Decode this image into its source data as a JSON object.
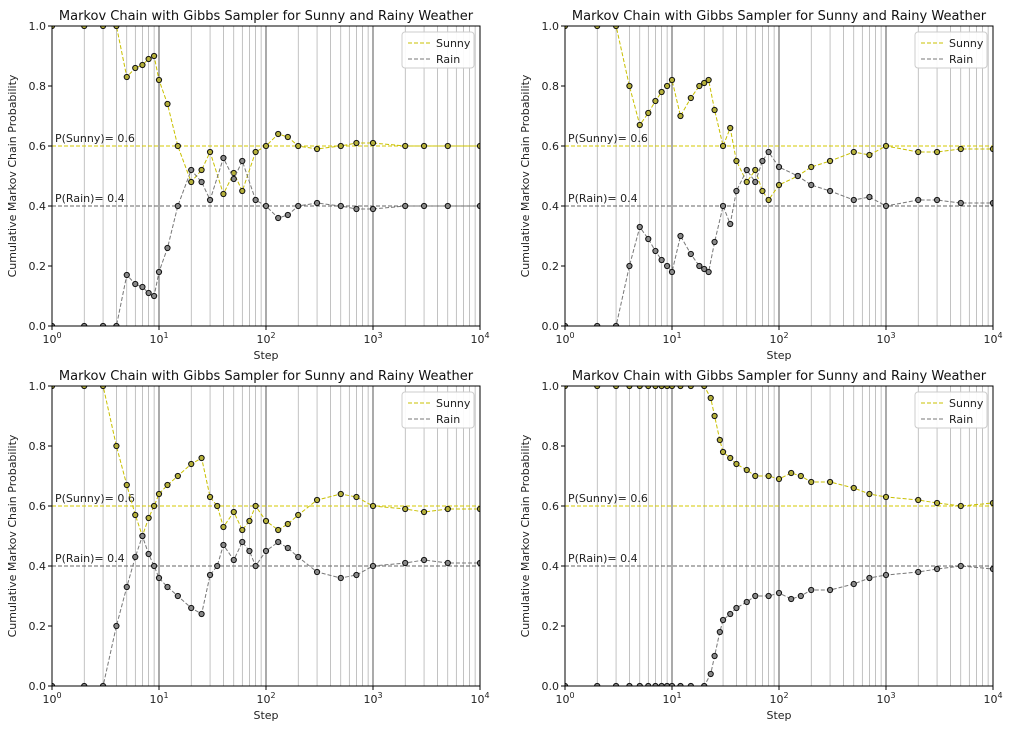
{
  "chart_data": [
    {
      "type": "line",
      "title": "Markov Chain with Gibbs Sampler for Sunny and Rainy Weather",
      "xlabel": "Step",
      "ylabel": "Cumulative Markov Chain Probability",
      "xscale": "log",
      "xlim": [
        1,
        10000
      ],
      "ylim": [
        0,
        1
      ],
      "x_ticks": [
        {
          "base": "10",
          "exp": "0"
        },
        {
          "base": "10",
          "exp": "1"
        },
        {
          "base": "10",
          "exp": "2"
        },
        {
          "base": "10",
          "exp": "3"
        },
        {
          "base": "10",
          "exp": "4"
        }
      ],
      "y_ticks": [
        "0.0",
        "0.2",
        "0.4",
        "0.6",
        "0.8",
        "1.0"
      ],
      "grid": "vertical",
      "legend_position": "top-right",
      "reference_lines": [
        {
          "label": "P(Sunny)= 0.6",
          "y": 0.6,
          "color": "#d4c800"
        },
        {
          "label": "P(Rain)= 0.4",
          "y": 0.4,
          "color": "#666666"
        }
      ],
      "series": [
        {
          "name": "Sunny",
          "color": "#c9c000",
          "marker_fill": "#b5b03a",
          "x": [
            1,
            2,
            3,
            4,
            5,
            6,
            7,
            8,
            9,
            10,
            12,
            15,
            20,
            25,
            30,
            40,
            50,
            60,
            80,
            100,
            130,
            160,
            200,
            300,
            500,
            700,
            1000,
            2000,
            3000,
            5000,
            10000
          ],
          "y": [
            1.0,
            1.0,
            1.0,
            1.0,
            0.83,
            0.86,
            0.87,
            0.89,
            0.9,
            0.82,
            0.74,
            0.6,
            0.48,
            0.52,
            0.58,
            0.44,
            0.51,
            0.45,
            0.58,
            0.6,
            0.64,
            0.63,
            0.6,
            0.59,
            0.6,
            0.61,
            0.61,
            0.6,
            0.6,
            0.6,
            0.6
          ]
        },
        {
          "name": "Rain",
          "color": "#777777",
          "marker_fill": "#888888",
          "x": [
            1,
            2,
            3,
            4,
            5,
            6,
            7,
            8,
            9,
            10,
            12,
            15,
            20,
            25,
            30,
            40,
            50,
            60,
            80,
            100,
            130,
            160,
            200,
            300,
            500,
            700,
            1000,
            2000,
            3000,
            5000,
            10000
          ],
          "y": [
            0.0,
            0.0,
            0.0,
            0.0,
            0.17,
            0.14,
            0.13,
            0.11,
            0.1,
            0.18,
            0.26,
            0.4,
            0.52,
            0.48,
            0.42,
            0.56,
            0.49,
            0.55,
            0.42,
            0.4,
            0.36,
            0.37,
            0.4,
            0.41,
            0.4,
            0.39,
            0.39,
            0.4,
            0.4,
            0.4,
            0.4
          ]
        }
      ]
    },
    {
      "type": "line",
      "title": "Markov Chain with Gibbs Sampler for Sunny and Rainy Weather",
      "xlabel": "Step",
      "ylabel": "Cumulative Markov Chain Probability",
      "xscale": "log",
      "xlim": [
        1,
        10000
      ],
      "ylim": [
        0,
        1
      ],
      "x_ticks": [
        {
          "base": "10",
          "exp": "0"
        },
        {
          "base": "10",
          "exp": "1"
        },
        {
          "base": "10",
          "exp": "2"
        },
        {
          "base": "10",
          "exp": "3"
        },
        {
          "base": "10",
          "exp": "4"
        }
      ],
      "y_ticks": [
        "0.0",
        "0.2",
        "0.4",
        "0.6",
        "0.8",
        "1.0"
      ],
      "grid": "vertical",
      "legend_position": "top-right",
      "reference_lines": [
        {
          "label": "P(Sunny)= 0.6",
          "y": 0.6,
          "color": "#d4c800"
        },
        {
          "label": "P(Rain)= 0.4",
          "y": 0.4,
          "color": "#666666"
        }
      ],
      "series": [
        {
          "name": "Sunny",
          "color": "#c9c000",
          "marker_fill": "#b5b03a",
          "x": [
            1,
            2,
            3,
            4,
            5,
            6,
            7,
            8,
            9,
            10,
            12,
            15,
            18,
            20,
            22,
            25,
            30,
            35,
            40,
            50,
            60,
            70,
            80,
            100,
            150,
            200,
            300,
            500,
            700,
            1000,
            2000,
            3000,
            5000,
            10000
          ],
          "y": [
            1.0,
            1.0,
            1.0,
            0.8,
            0.67,
            0.71,
            0.75,
            0.78,
            0.8,
            0.82,
            0.7,
            0.76,
            0.8,
            0.81,
            0.82,
            0.72,
            0.6,
            0.66,
            0.55,
            0.48,
            0.52,
            0.45,
            0.42,
            0.47,
            0.5,
            0.53,
            0.55,
            0.58,
            0.57,
            0.6,
            0.58,
            0.58,
            0.59,
            0.59
          ]
        },
        {
          "name": "Rain",
          "color": "#777777",
          "marker_fill": "#888888",
          "x": [
            1,
            2,
            3,
            4,
            5,
            6,
            7,
            8,
            9,
            10,
            12,
            15,
            18,
            20,
            22,
            25,
            30,
            35,
            40,
            50,
            60,
            70,
            80,
            100,
            150,
            200,
            300,
            500,
            700,
            1000,
            2000,
            3000,
            5000,
            10000
          ],
          "y": [
            0.0,
            0.0,
            0.0,
            0.2,
            0.33,
            0.29,
            0.25,
            0.22,
            0.2,
            0.18,
            0.3,
            0.24,
            0.2,
            0.19,
            0.18,
            0.28,
            0.4,
            0.34,
            0.45,
            0.52,
            0.48,
            0.55,
            0.58,
            0.53,
            0.5,
            0.47,
            0.45,
            0.42,
            0.43,
            0.4,
            0.42,
            0.42,
            0.41,
            0.41
          ]
        }
      ]
    },
    {
      "type": "line",
      "title": "Markov Chain with Gibbs Sampler for Sunny and Rainy Weather",
      "xlabel": "Step",
      "ylabel": "Cumulative Markov Chain Probability",
      "xscale": "log",
      "xlim": [
        1,
        10000
      ],
      "ylim": [
        0,
        1
      ],
      "x_ticks": [
        {
          "base": "10",
          "exp": "0"
        },
        {
          "base": "10",
          "exp": "1"
        },
        {
          "base": "10",
          "exp": "2"
        },
        {
          "base": "10",
          "exp": "3"
        },
        {
          "base": "10",
          "exp": "4"
        }
      ],
      "y_ticks": [
        "0.0",
        "0.2",
        "0.4",
        "0.6",
        "0.8",
        "1.0"
      ],
      "grid": "vertical",
      "legend_position": "top-right",
      "reference_lines": [
        {
          "label": "P(Sunny)= 0.6",
          "y": 0.6,
          "color": "#d4c800"
        },
        {
          "label": "P(Rain)= 0.4",
          "y": 0.4,
          "color": "#666666"
        }
      ],
      "series": [
        {
          "name": "Sunny",
          "color": "#c9c000",
          "marker_fill": "#b5b03a",
          "x": [
            1,
            2,
            3,
            4,
            5,
            6,
            7,
            8,
            9,
            10,
            12,
            15,
            20,
            25,
            30,
            35,
            40,
            50,
            60,
            70,
            80,
            100,
            130,
            160,
            200,
            300,
            500,
            700,
            1000,
            2000,
            3000,
            5000,
            10000
          ],
          "y": [
            1.0,
            1.0,
            1.0,
            0.8,
            0.67,
            0.57,
            0.5,
            0.56,
            0.6,
            0.64,
            0.67,
            0.7,
            0.74,
            0.76,
            0.63,
            0.6,
            0.53,
            0.58,
            0.52,
            0.55,
            0.6,
            0.55,
            0.52,
            0.54,
            0.57,
            0.62,
            0.64,
            0.63,
            0.6,
            0.59,
            0.58,
            0.59,
            0.59
          ]
        },
        {
          "name": "Rain",
          "color": "#777777",
          "marker_fill": "#888888",
          "x": [
            1,
            2,
            3,
            4,
            5,
            6,
            7,
            8,
            9,
            10,
            12,
            15,
            20,
            25,
            30,
            35,
            40,
            50,
            60,
            70,
            80,
            100,
            130,
            160,
            200,
            300,
            500,
            700,
            1000,
            2000,
            3000,
            5000,
            10000
          ],
          "y": [
            0.0,
            0.0,
            0.0,
            0.2,
            0.33,
            0.43,
            0.5,
            0.44,
            0.4,
            0.36,
            0.33,
            0.3,
            0.26,
            0.24,
            0.37,
            0.4,
            0.47,
            0.42,
            0.48,
            0.45,
            0.4,
            0.45,
            0.48,
            0.46,
            0.43,
            0.38,
            0.36,
            0.37,
            0.4,
            0.41,
            0.42,
            0.41,
            0.41
          ]
        }
      ]
    },
    {
      "type": "line",
      "title": "Markov Chain with Gibbs Sampler for Sunny and Rainy Weather",
      "xlabel": "Step",
      "ylabel": "Cumulative Markov Chain Probability",
      "xscale": "log",
      "xlim": [
        1,
        10000
      ],
      "ylim": [
        0,
        1
      ],
      "x_ticks": [
        {
          "base": "10",
          "exp": "0"
        },
        {
          "base": "10",
          "exp": "1"
        },
        {
          "base": "10",
          "exp": "2"
        },
        {
          "base": "10",
          "exp": "3"
        },
        {
          "base": "10",
          "exp": "4"
        }
      ],
      "y_ticks": [
        "0.0",
        "0.2",
        "0.4",
        "0.6",
        "0.8",
        "1.0"
      ],
      "grid": "vertical",
      "legend_position": "top-right",
      "reference_lines": [
        {
          "label": "P(Sunny)= 0.6",
          "y": 0.6,
          "color": "#d4c800"
        },
        {
          "label": "P(Rain)= 0.4",
          "y": 0.4,
          "color": "#666666"
        }
      ],
      "series": [
        {
          "name": "Sunny",
          "color": "#c9c000",
          "marker_fill": "#b5b03a",
          "x": [
            1,
            2,
            3,
            4,
            5,
            6,
            7,
            8,
            9,
            10,
            12,
            15,
            20,
            23,
            25,
            28,
            30,
            35,
            40,
            50,
            60,
            80,
            100,
            130,
            160,
            200,
            300,
            500,
            700,
            1000,
            2000,
            3000,
            5000,
            10000
          ],
          "y": [
            1.0,
            1.0,
            1.0,
            1.0,
            1.0,
            1.0,
            1.0,
            1.0,
            1.0,
            1.0,
            1.0,
            1.0,
            1.0,
            0.96,
            0.9,
            0.82,
            0.78,
            0.76,
            0.74,
            0.72,
            0.7,
            0.7,
            0.69,
            0.71,
            0.7,
            0.68,
            0.68,
            0.66,
            0.64,
            0.63,
            0.62,
            0.61,
            0.6,
            0.61
          ]
        },
        {
          "name": "Rain",
          "color": "#777777",
          "marker_fill": "#888888",
          "x": [
            1,
            2,
            3,
            4,
            5,
            6,
            7,
            8,
            9,
            10,
            12,
            15,
            20,
            23,
            25,
            28,
            30,
            35,
            40,
            50,
            60,
            80,
            100,
            130,
            160,
            200,
            300,
            500,
            700,
            1000,
            2000,
            3000,
            5000,
            10000
          ],
          "y": [
            0.0,
            0.0,
            0.0,
            0.0,
            0.0,
            0.0,
            0.0,
            0.0,
            0.0,
            0.0,
            0.0,
            0.0,
            0.0,
            0.04,
            0.1,
            0.18,
            0.22,
            0.24,
            0.26,
            0.28,
            0.3,
            0.3,
            0.31,
            0.29,
            0.3,
            0.32,
            0.32,
            0.34,
            0.36,
            0.37,
            0.38,
            0.39,
            0.4,
            0.39
          ]
        }
      ]
    }
  ]
}
